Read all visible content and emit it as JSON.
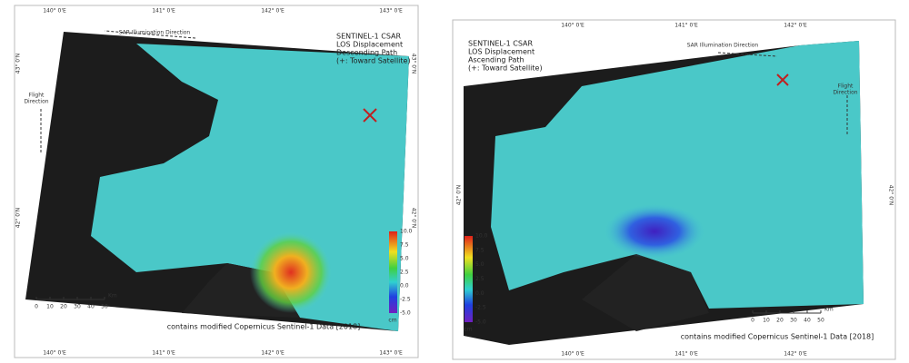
{
  "panels": [
    {
      "title_lines": [
        "SENTINEL-1 CSAR",
        "LOS Displacement",
        "Descending Path",
        "(+: Toward Satellite)"
      ],
      "sar_direction": "SAR Illumination Direction",
      "flight_direction": [
        "Flight",
        "Direction"
      ],
      "lon_labels_top": [
        "140° 0'E",
        "141° 0'E",
        "142° 0'E",
        "143° 0'E"
      ],
      "lon_labels_bottom": [
        "140° 0'E",
        "141° 0'E",
        "142° 0'E",
        "143° 0'E"
      ],
      "lat_labels_left": [
        "43° 0'N",
        "42° 0'N"
      ],
      "lat_labels_right": [
        "43° 0'N",
        "42° 0'N"
      ],
      "colorbar": {
        "ticks": [
          "10.0",
          "7.5",
          "5.0",
          "2.5",
          "0.0",
          "-2.5",
          "-5.0"
        ],
        "unit": "cm"
      },
      "scalebar": {
        "ticks": [
          "0",
          "10",
          "20",
          "30",
          "40",
          "50"
        ],
        "unit": "Km"
      },
      "credit": "contains modified Copernicus Sentinel-1 Data [2018]"
    },
    {
      "title_lines": [
        "SENTINEL-1 CSAR",
        "LOS Displacement",
        "Ascending Path",
        "(+: Toward Satellite)"
      ],
      "sar_direction": "SAR Illumination Direction",
      "flight_direction": [
        "Flight",
        "Direction"
      ],
      "lon_labels_top": [
        "140° 0'E",
        "141° 0'E",
        "142° 0'E"
      ],
      "lon_labels_bottom": [
        "140° 0'E",
        "141° 0'E",
        "142° 0'E"
      ],
      "lat_labels_left": [
        "42° 0'N"
      ],
      "lat_labels_right": [
        "42° 0'N"
      ],
      "colorbar": {
        "ticks": [
          "10.0",
          "7.5",
          "5.0",
          "2.5",
          "0.0",
          "-2.5",
          "-5.0"
        ],
        "unit": "cm"
      },
      "scalebar": {
        "ticks": [
          "0",
          "10",
          "20",
          "30",
          "40",
          "50"
        ],
        "unit": "Km"
      },
      "credit": "contains modified Copernicus Sentinel-1 Data [2018]"
    }
  ]
}
